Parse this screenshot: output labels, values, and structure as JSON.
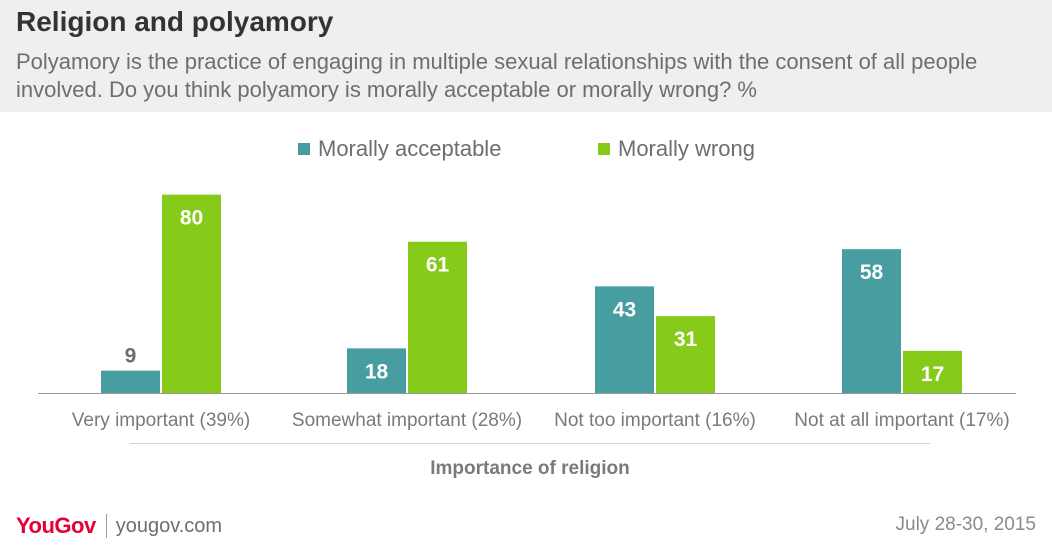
{
  "header": {
    "title": "Religion and polyamory",
    "subtitle": "Polyamory is the practice of engaging in multiple sexual relationships with the consent of all people involved. Do you think polyamory is morally acceptable or morally wrong? %"
  },
  "colors": {
    "acceptable": "#479d9f",
    "wrong": "#86cb1a",
    "brand": "#e4003b"
  },
  "footer": {
    "logo": "YouGov",
    "url": "yougov.com",
    "date": "July 28-30, 2015"
  },
  "chart_data": {
    "type": "bar",
    "categories": [
      "Very important (39%)",
      "Somewhat important (28%)",
      "Not too important (16%)",
      "Not at all important (17%)"
    ],
    "series": [
      {
        "name": "Morally acceptable",
        "values": [
          9,
          18,
          43,
          58
        ]
      },
      {
        "name": "Morally wrong",
        "values": [
          80,
          61,
          31,
          17
        ]
      }
    ],
    "xlabel": "Importance of religion",
    "ylabel": "",
    "ylim": [
      0,
      100
    ],
    "grid": false,
    "legend": "top-center",
    "data_labels": true
  }
}
